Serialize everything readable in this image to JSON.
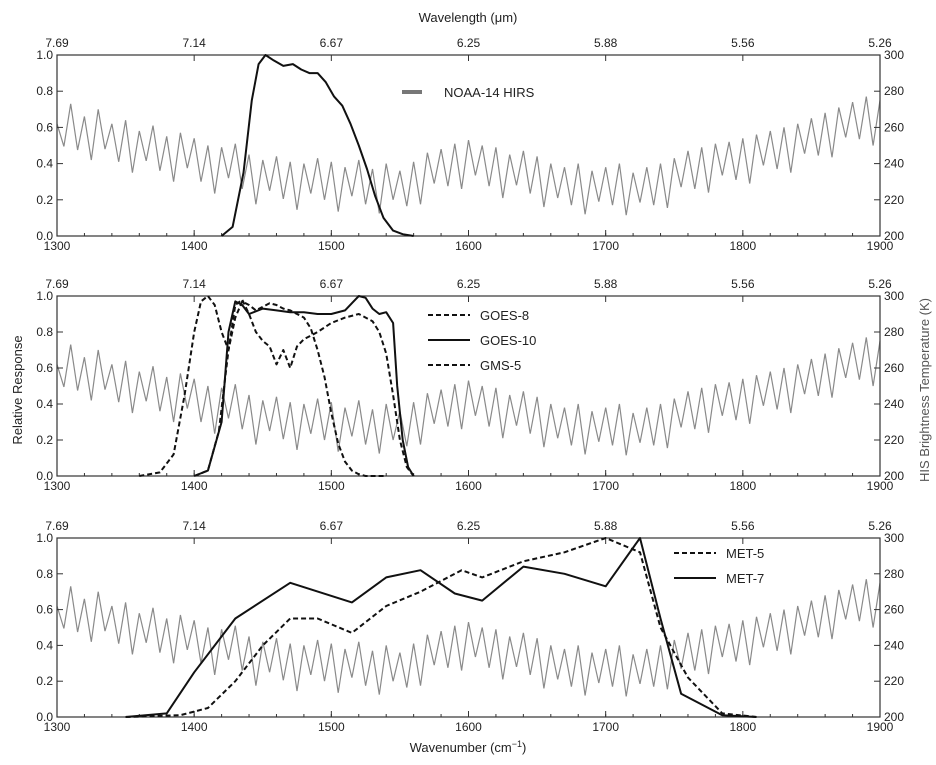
{
  "figure": {
    "top_axis_title": "Wavelength (μm)",
    "bottom_axis_title_main": "Wavenumber (cm",
    "bottom_axis_title_sup": "−1",
    "bottom_axis_title_end": ")",
    "left_axis_title": "Relative Response",
    "right_axis_title": "HIS Brightness Temperature (K)"
  },
  "chart_data": [
    {
      "type": "line",
      "panel": "top",
      "x_range": [
        1300,
        1900
      ],
      "ylim_left": [
        0.0,
        1.0
      ],
      "ylim_right": [
        200,
        300
      ],
      "x_ticks": [
        "1300",
        "1400",
        "1500",
        "1600",
        "1700",
        "1800",
        "1900"
      ],
      "x_tick_values": [
        1300,
        1400,
        1500,
        1600,
        1700,
        1800,
        1900
      ],
      "y_ticks_left": [
        "0.0",
        "0.2",
        "0.4",
        "0.6",
        "0.8",
        "1.0"
      ],
      "y_tick_values_left": [
        0.0,
        0.2,
        0.4,
        0.6,
        0.8,
        1.0
      ],
      "y_ticks_right": [
        "200",
        "220",
        "240",
        "260",
        "280",
        "300"
      ],
      "y_tick_values_right": [
        200,
        220,
        240,
        260,
        280,
        300
      ],
      "top_ticks": [
        "7.69",
        "7.14",
        "6.67",
        "6.25",
        "5.88",
        "5.56",
        "5.26"
      ],
      "top_tick_values": [
        1300,
        1400,
        1500,
        1600,
        1700,
        1800,
        1900
      ],
      "legend_position": "top-center",
      "series": [
        {
          "name": "NOAA-14 HIRS",
          "style": "solid",
          "legend_swatch": "gray",
          "x": [
            1420,
            1428,
            1436,
            1442,
            1447,
            1452,
            1458,
            1465,
            1472,
            1478,
            1484,
            1490,
            1496,
            1502,
            1508,
            1514,
            1520,
            1526,
            1532,
            1538,
            1545,
            1552,
            1560
          ],
          "y": [
            0.0,
            0.05,
            0.35,
            0.75,
            0.95,
            1.0,
            0.97,
            0.94,
            0.95,
            0.92,
            0.9,
            0.9,
            0.85,
            0.77,
            0.72,
            0.62,
            0.5,
            0.37,
            0.22,
            0.1,
            0.03,
            0.01,
            0.0
          ]
        }
      ],
      "background_series": {
        "axis": "right",
        "x": [
          1300,
          1310,
          1320,
          1330,
          1340,
          1350,
          1360,
          1370,
          1380,
          1390,
          1400,
          1410,
          1420,
          1430,
          1440,
          1450,
          1460,
          1470,
          1480,
          1490,
          1500,
          1510,
          1520,
          1530,
          1540,
          1550,
          1560,
          1570,
          1580,
          1590,
          1600,
          1610,
          1620,
          1630,
          1640,
          1650,
          1660,
          1670,
          1680,
          1690,
          1700,
          1710,
          1720,
          1730,
          1740,
          1750,
          1760,
          1770,
          1780,
          1790,
          1800,
          1810,
          1820,
          1830,
          1840,
          1850,
          1860,
          1870,
          1880,
          1890,
          1900
        ],
        "y": [
          262,
          273,
          266,
          270,
          262,
          264,
          258,
          261,
          255,
          257,
          254,
          250,
          249,
          251,
          245,
          242,
          244,
          241,
          240,
          243,
          241,
          238,
          242,
          237,
          240,
          236,
          241,
          246,
          248,
          251,
          253,
          250,
          249,
          245,
          247,
          244,
          240,
          238,
          240,
          236,
          238,
          240,
          235,
          238,
          240,
          243,
          247,
          249,
          251,
          252,
          254,
          256,
          258,
          260,
          262,
          265,
          268,
          271,
          274,
          277,
          275
        ]
      }
    },
    {
      "type": "line",
      "panel": "middle",
      "x_range": [
        1300,
        1900
      ],
      "ylim_left": [
        0.0,
        1.0
      ],
      "ylim_right": [
        200,
        300
      ],
      "x_ticks": [
        "1300",
        "1400",
        "1500",
        "1600",
        "1700",
        "1800",
        "1900"
      ],
      "x_tick_values": [
        1300,
        1400,
        1500,
        1600,
        1700,
        1800,
        1900
      ],
      "y_ticks_left": [
        "0.0",
        "0.2",
        "0.4",
        "0.6",
        "0.8",
        "1.0"
      ],
      "y_tick_values_left": [
        0.0,
        0.2,
        0.4,
        0.6,
        0.8,
        1.0
      ],
      "y_ticks_right": [
        "200",
        "220",
        "240",
        "260",
        "280",
        "300"
      ],
      "y_tick_values_right": [
        200,
        220,
        240,
        260,
        280,
        300
      ],
      "top_ticks": [
        "7.69",
        "7.14",
        "6.67",
        "6.25",
        "5.88",
        "5.56",
        "5.26"
      ],
      "top_tick_values": [
        1300,
        1400,
        1500,
        1600,
        1700,
        1800,
        1900
      ],
      "legend_position": "top-center",
      "series": [
        {
          "name": "GOES-8",
          "style": "dashed",
          "x": [
            1360,
            1375,
            1385,
            1393,
            1400,
            1405,
            1410,
            1415,
            1420,
            1425,
            1430,
            1435,
            1440,
            1445,
            1450,
            1455,
            1460,
            1465,
            1470,
            1475,
            1480,
            1485,
            1490,
            1495,
            1500,
            1505,
            1510,
            1515,
            1520,
            1525,
            1530,
            1540
          ],
          "y": [
            0.0,
            0.02,
            0.12,
            0.45,
            0.8,
            0.97,
            1.0,
            0.95,
            0.8,
            0.7,
            0.88,
            0.97,
            0.95,
            0.92,
            0.94,
            0.96,
            0.95,
            0.93,
            0.92,
            0.9,
            0.88,
            0.82,
            0.7,
            0.55,
            0.35,
            0.18,
            0.08,
            0.03,
            0.01,
            0.0,
            0.0,
            0.0
          ]
        },
        {
          "name": "GOES-10",
          "style": "solid",
          "x": [
            1400,
            1410,
            1420,
            1425,
            1430,
            1435,
            1440,
            1450,
            1460,
            1470,
            1480,
            1490,
            1500,
            1510,
            1515,
            1520,
            1525,
            1530,
            1535,
            1540,
            1545,
            1548,
            1552,
            1556,
            1560
          ],
          "y": [
            0.0,
            0.03,
            0.3,
            0.8,
            0.97,
            0.95,
            0.9,
            0.93,
            0.92,
            0.91,
            0.91,
            0.9,
            0.9,
            0.92,
            0.96,
            1.0,
            0.99,
            0.93,
            0.9,
            0.91,
            0.85,
            0.5,
            0.2,
            0.05,
            0.0
          ]
        },
        {
          "name": "GMS-5",
          "style": "dashed",
          "x": [
            1400,
            1410,
            1418,
            1425,
            1430,
            1435,
            1440,
            1445,
            1450,
            1455,
            1460,
            1465,
            1470,
            1475,
            1480,
            1485,
            1490,
            1500,
            1510,
            1520,
            1530,
            1535,
            1540,
            1545,
            1550,
            1555,
            1560
          ],
          "y": [
            0.0,
            0.03,
            0.25,
            0.7,
            0.95,
            0.98,
            0.9,
            0.8,
            0.75,
            0.72,
            0.62,
            0.7,
            0.6,
            0.72,
            0.76,
            0.78,
            0.8,
            0.85,
            0.88,
            0.9,
            0.86,
            0.8,
            0.68,
            0.45,
            0.2,
            0.05,
            0.0
          ]
        }
      ],
      "background_series": {
        "axis": "right",
        "x": [
          1300,
          1310,
          1320,
          1330,
          1340,
          1350,
          1360,
          1370,
          1380,
          1390,
          1400,
          1410,
          1420,
          1430,
          1440,
          1450,
          1460,
          1470,
          1480,
          1490,
          1500,
          1510,
          1520,
          1530,
          1540,
          1550,
          1560,
          1570,
          1580,
          1590,
          1600,
          1610,
          1620,
          1630,
          1640,
          1650,
          1660,
          1670,
          1680,
          1690,
          1700,
          1710,
          1720,
          1730,
          1740,
          1750,
          1760,
          1770,
          1780,
          1790,
          1800,
          1810,
          1820,
          1830,
          1840,
          1850,
          1860,
          1870,
          1880,
          1890,
          1900
        ],
        "y": [
          262,
          273,
          266,
          270,
          262,
          264,
          258,
          261,
          255,
          257,
          254,
          250,
          249,
          251,
          245,
          242,
          244,
          241,
          240,
          243,
          241,
          238,
          242,
          237,
          240,
          236,
          241,
          246,
          248,
          251,
          253,
          250,
          249,
          245,
          247,
          244,
          240,
          238,
          240,
          236,
          238,
          240,
          235,
          238,
          240,
          243,
          247,
          249,
          251,
          252,
          254,
          256,
          258,
          260,
          262,
          265,
          268,
          271,
          274,
          277,
          275
        ]
      }
    },
    {
      "type": "line",
      "panel": "bottom",
      "x_range": [
        1300,
        1900
      ],
      "ylim_left": [
        0.0,
        1.0
      ],
      "ylim_right": [
        200,
        300
      ],
      "x_ticks": [
        "1300",
        "1400",
        "1500",
        "1600",
        "1700",
        "1800",
        "1900"
      ],
      "x_tick_values": [
        1300,
        1400,
        1500,
        1600,
        1700,
        1800,
        1900
      ],
      "y_ticks_left": [
        "0.0",
        "0.2",
        "0.4",
        "0.6",
        "0.8",
        "1.0"
      ],
      "y_tick_values_left": [
        0.0,
        0.2,
        0.4,
        0.6,
        0.8,
        1.0
      ],
      "y_ticks_right": [
        "200",
        "220",
        "240",
        "260",
        "280",
        "300"
      ],
      "y_tick_values_right": [
        200,
        220,
        240,
        260,
        280,
        300
      ],
      "top_ticks": [
        "7.69",
        "7.14",
        "6.67",
        "6.25",
        "5.88",
        "5.56",
        "5.26"
      ],
      "top_tick_values": [
        1300,
        1400,
        1500,
        1600,
        1700,
        1800,
        1900
      ],
      "legend_position": "top-right",
      "series": [
        {
          "name": "MET-5",
          "style": "dashed",
          "x": [
            1350,
            1390,
            1410,
            1430,
            1450,
            1470,
            1490,
            1515,
            1540,
            1565,
            1595,
            1610,
            1640,
            1670,
            1700,
            1725,
            1740,
            1760,
            1785,
            1810
          ],
          "y": [
            0.0,
            0.01,
            0.05,
            0.2,
            0.4,
            0.55,
            0.55,
            0.47,
            0.62,
            0.7,
            0.82,
            0.78,
            0.87,
            0.92,
            1.0,
            0.92,
            0.5,
            0.22,
            0.02,
            0.0
          ]
        },
        {
          "name": "MET-7",
          "style": "solid",
          "x": [
            1350,
            1380,
            1400,
            1430,
            1470,
            1515,
            1540,
            1565,
            1590,
            1610,
            1640,
            1670,
            1700,
            1725,
            1740,
            1755,
            1785,
            1810
          ],
          "y": [
            0.0,
            0.02,
            0.25,
            0.55,
            0.75,
            0.64,
            0.78,
            0.82,
            0.69,
            0.65,
            0.84,
            0.8,
            0.73,
            1.0,
            0.55,
            0.13,
            0.01,
            0.0
          ]
        }
      ],
      "background_series": {
        "axis": "right",
        "x": [
          1300,
          1310,
          1320,
          1330,
          1340,
          1350,
          1360,
          1370,
          1380,
          1390,
          1400,
          1410,
          1420,
          1430,
          1440,
          1450,
          1460,
          1470,
          1480,
          1490,
          1500,
          1510,
          1520,
          1530,
          1540,
          1550,
          1560,
          1570,
          1580,
          1590,
          1600,
          1610,
          1620,
          1630,
          1640,
          1650,
          1660,
          1670,
          1680,
          1690,
          1700,
          1710,
          1720,
          1730,
          1740,
          1750,
          1760,
          1770,
          1780,
          1790,
          1800,
          1810,
          1820,
          1830,
          1840,
          1850,
          1860,
          1870,
          1880,
          1890,
          1900
        ],
        "y": [
          262,
          273,
          266,
          270,
          262,
          264,
          258,
          261,
          255,
          257,
          254,
          250,
          249,
          251,
          245,
          242,
          244,
          241,
          240,
          243,
          241,
          238,
          242,
          237,
          240,
          236,
          241,
          246,
          248,
          251,
          253,
          250,
          249,
          245,
          247,
          244,
          240,
          238,
          240,
          236,
          238,
          240,
          235,
          238,
          240,
          243,
          247,
          249,
          251,
          252,
          254,
          256,
          258,
          260,
          262,
          265,
          268,
          271,
          274,
          277,
          275
        ]
      }
    }
  ],
  "colors": {
    "response_line": "#111111",
    "background_spectrum": "#8a8a8a",
    "axes": "#333333"
  }
}
